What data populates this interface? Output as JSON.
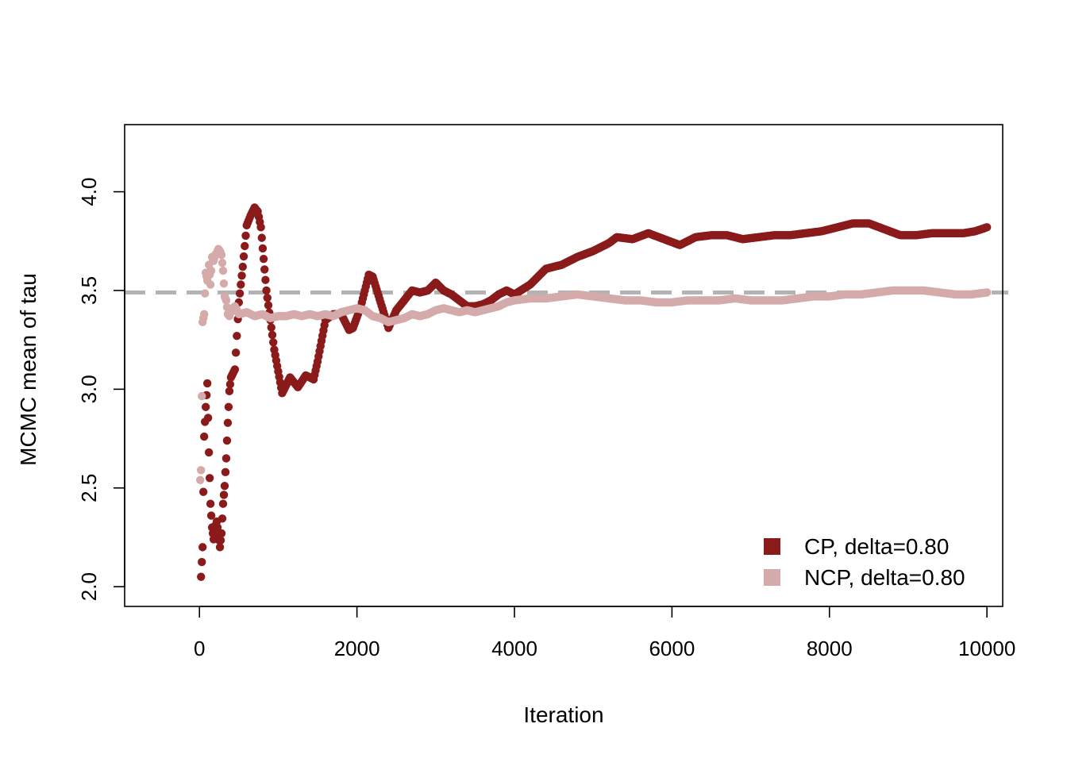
{
  "chart_data": {
    "type": "scatter",
    "title": "",
    "xlabel": "Iteration",
    "ylabel": "MCMC mean of tau",
    "xlim": [
      -950,
      10200
    ],
    "ylim": [
      1.9,
      4.34
    ],
    "xticks": [
      0,
      2000,
      4000,
      6000,
      8000,
      10000
    ],
    "yticks": [
      2.0,
      2.5,
      3.0,
      3.5,
      4.0
    ],
    "ytick_labels": [
      "2.0",
      "2.5",
      "3.0",
      "3.5",
      "4.0"
    ],
    "reference_line": {
      "y": 3.49,
      "color": "#b3b3b3",
      "style": "dashed"
    },
    "legend_position": "bottom-right",
    "series": [
      {
        "name": "CP, delta=0.80",
        "color": "#8b1a1a",
        "x": [
          20,
          40,
          60,
          80,
          100,
          120,
          140,
          160,
          180,
          200,
          220,
          240,
          260,
          280,
          300,
          320,
          340,
          360,
          380,
          400,
          450,
          500,
          550,
          600,
          650,
          700,
          740,
          780,
          850,
          950,
          1050,
          1150,
          1250,
          1350,
          1450,
          1500,
          1600,
          1700,
          1800,
          1900,
          1950,
          2050,
          2150,
          2200,
          2300,
          2400,
          2500,
          2600,
          2700,
          2800,
          2900,
          3000,
          3100,
          3200,
          3300,
          3400,
          3500,
          3600,
          3700,
          3800,
          3900,
          4000,
          4200,
          4400,
          4600,
          4800,
          5000,
          5200,
          5300,
          5500,
          5700,
          5900,
          6100,
          6300,
          6500,
          6700,
          6900,
          7100,
          7300,
          7500,
          7700,
          7900,
          8100,
          8300,
          8500,
          8700,
          8900,
          9100,
          9300,
          9500,
          9700,
          9850,
          10000
        ],
        "values": [
          2.05,
          2.2,
          2.76,
          2.91,
          3.03,
          2.68,
          2.42,
          2.3,
          2.24,
          2.3,
          2.33,
          2.27,
          2.2,
          2.27,
          2.42,
          2.51,
          2.65,
          2.83,
          2.99,
          3.06,
          3.1,
          3.44,
          3.62,
          3.83,
          3.88,
          3.92,
          3.9,
          3.82,
          3.5,
          3.2,
          2.98,
          3.06,
          3.01,
          3.07,
          3.05,
          3.14,
          3.35,
          3.38,
          3.38,
          3.3,
          3.31,
          3.42,
          3.58,
          3.57,
          3.44,
          3.31,
          3.4,
          3.45,
          3.5,
          3.49,
          3.5,
          3.54,
          3.5,
          3.48,
          3.45,
          3.42,
          3.42,
          3.43,
          3.45,
          3.48,
          3.5,
          3.48,
          3.53,
          3.61,
          3.63,
          3.67,
          3.7,
          3.74,
          3.77,
          3.76,
          3.79,
          3.76,
          3.73,
          3.77,
          3.78,
          3.78,
          3.76,
          3.77,
          3.78,
          3.78,
          3.79,
          3.8,
          3.82,
          3.84,
          3.84,
          3.81,
          3.78,
          3.78,
          3.79,
          3.79,
          3.79,
          3.8,
          3.82
        ]
      },
      {
        "name": "NCP, delta=0.80",
        "color": "#d4aaaa",
        "x": [
          10,
          20,
          40,
          60,
          80,
          100,
          120,
          140,
          160,
          180,
          200,
          220,
          240,
          260,
          280,
          300,
          320,
          340,
          360,
          380,
          400,
          450,
          500,
          600,
          700,
          800,
          900,
          1000,
          1100,
          1200,
          1300,
          1400,
          1500,
          1600,
          1700,
          1800,
          1900,
          2000,
          2100,
          2200,
          2300,
          2400,
          2500,
          2600,
          2700,
          2800,
          2900,
          3000,
          3100,
          3200,
          3300,
          3400,
          3500,
          3600,
          3700,
          3800,
          3900,
          4000,
          4200,
          4400,
          4600,
          4800,
          5000,
          5200,
          5400,
          5600,
          5800,
          6000,
          6200,
          6400,
          6600,
          6800,
          7000,
          7200,
          7400,
          7600,
          7800,
          8000,
          8200,
          8400,
          8600,
          8800,
          9000,
          9200,
          9400,
          9600,
          9800,
          10000
        ],
        "values": [
          2.54,
          2.59,
          3.34,
          3.38,
          3.59,
          3.55,
          3.63,
          3.53,
          3.67,
          3.65,
          3.68,
          3.69,
          3.71,
          3.7,
          3.68,
          3.6,
          3.47,
          3.45,
          3.38,
          3.37,
          3.4,
          3.42,
          3.38,
          3.39,
          3.37,
          3.38,
          3.36,
          3.37,
          3.37,
          3.38,
          3.37,
          3.38,
          3.37,
          3.38,
          3.37,
          3.39,
          3.4,
          3.41,
          3.4,
          3.37,
          3.36,
          3.34,
          3.35,
          3.36,
          3.38,
          3.37,
          3.38,
          3.4,
          3.41,
          3.4,
          3.39,
          3.4,
          3.39,
          3.4,
          3.41,
          3.42,
          3.44,
          3.45,
          3.46,
          3.46,
          3.47,
          3.48,
          3.47,
          3.46,
          3.45,
          3.45,
          3.44,
          3.44,
          3.45,
          3.45,
          3.45,
          3.46,
          3.45,
          3.45,
          3.45,
          3.46,
          3.47,
          3.47,
          3.48,
          3.48,
          3.49,
          3.5,
          3.5,
          3.5,
          3.49,
          3.48,
          3.48,
          3.49
        ]
      }
    ]
  }
}
